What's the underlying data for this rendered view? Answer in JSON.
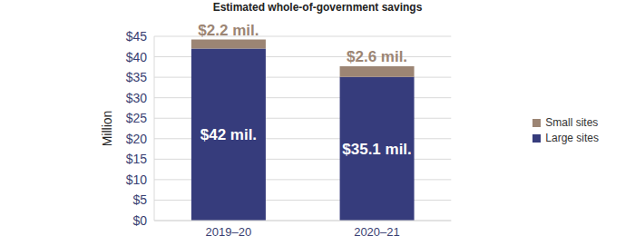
{
  "chart_data": {
    "type": "bar",
    "title": "Estimated whole-of-government savings",
    "y_label": "Million",
    "categories": [
      "2019–20",
      "2020–21"
    ],
    "series": [
      {
        "name": "Large sites",
        "color": "#363c7c",
        "values": [
          42,
          35.1
        ],
        "value_labels": [
          "$42 mil.",
          "$35.1 mil."
        ]
      },
      {
        "name": "Small sites",
        "color": "#9c8574",
        "values": [
          2.2,
          2.6
        ],
        "value_labels": [
          "$2.2 mil.",
          "$2.6 mil."
        ]
      }
    ],
    "ylim": [
      0,
      45
    ],
    "yticks": [
      {
        "value": 0,
        "label": "$0"
      },
      {
        "value": 5,
        "label": "$5"
      },
      {
        "value": 10,
        "label": "$10"
      },
      {
        "value": 15,
        "label": "$15"
      },
      {
        "value": 20,
        "label": "$20"
      },
      {
        "value": 25,
        "label": "$25"
      },
      {
        "value": 30,
        "label": "$30"
      },
      {
        "value": 35,
        "label": "$35"
      },
      {
        "value": 40,
        "label": "$40"
      },
      {
        "value": 45,
        "label": "$45"
      }
    ],
    "grid": true,
    "stacked": true,
    "legend": "right",
    "data_labels": true
  }
}
